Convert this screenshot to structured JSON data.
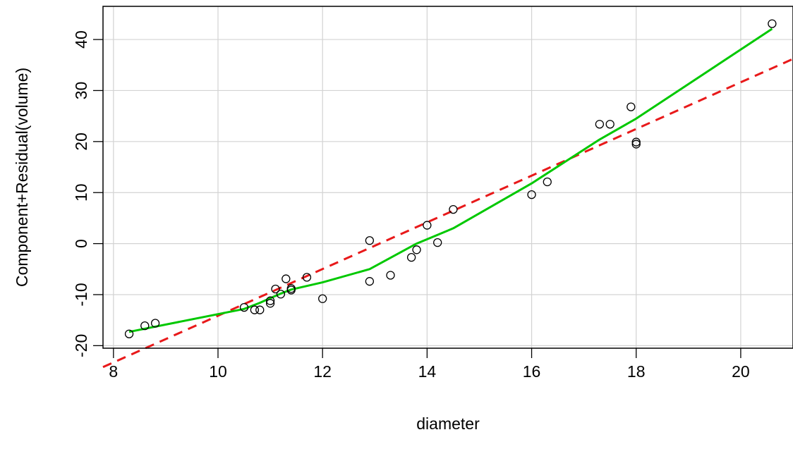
{
  "chart_data": {
    "type": "scatter",
    "title": "",
    "xlabel": "diameter",
    "ylabel": "Component+Residual(volume)",
    "xlim": [
      7.8,
      21.0
    ],
    "ylim": [
      -20.5,
      46.5
    ],
    "x_ticks": [
      8,
      10,
      12,
      14,
      16,
      18,
      20
    ],
    "y_ticks": [
      -20,
      -10,
      0,
      10,
      20,
      30,
      40
    ],
    "x_tick_labels": [
      "8",
      "10",
      "12",
      "14",
      "16",
      "18",
      "20"
    ],
    "y_tick_labels": [
      "-20",
      "-10",
      "0",
      "10",
      "20",
      "30",
      "40"
    ],
    "grid": true,
    "points": {
      "x": [
        8.3,
        8.6,
        8.8,
        10.5,
        10.7,
        10.8,
        11.0,
        11.0,
        11.1,
        11.2,
        11.3,
        11.4,
        11.4,
        11.7,
        12.0,
        12.9,
        12.9,
        13.3,
        13.7,
        13.8,
        14.0,
        14.2,
        14.5,
        16.0,
        16.3,
        17.3,
        17.5,
        17.9,
        18.0,
        18.0,
        20.6
      ],
      "y": [
        -17.7,
        -16.1,
        -15.6,
        -12.5,
        -13.0,
        -13.0,
        -11.7,
        -11.2,
        -8.9,
        -9.9,
        -6.9,
        -8.8,
        -9.1,
        -6.6,
        -10.8,
        -7.4,
        0.6,
        -6.2,
        -2.7,
        -1.2,
        3.6,
        0.2,
        6.7,
        9.6,
        12.1,
        23.4,
        23.4,
        26.8,
        19.9,
        19.5,
        43.1
      ]
    },
    "series": [
      {
        "type": "dashed-line",
        "color": "#e8191a",
        "x": [
          7.8,
          21.0
        ],
        "y": [
          -24.2,
          36.2
        ]
      },
      {
        "type": "line",
        "color": "#00c800",
        "x": [
          8.3,
          10.5,
          10.8,
          11.2,
          11.4,
          12.0,
          12.9,
          13.8,
          14.5,
          16.0,
          17.3,
          18.0,
          20.6
        ],
        "y": [
          -17.3,
          -12.8,
          -11.6,
          -9.8,
          -9.0,
          -7.6,
          -5.0,
          0.0,
          3.0,
          11.8,
          20.4,
          24.5,
          42.1
        ]
      }
    ]
  }
}
